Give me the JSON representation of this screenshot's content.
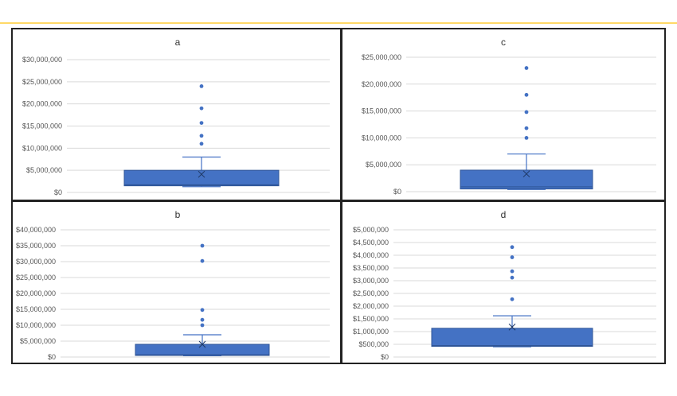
{
  "colors": {
    "box_fill": "#4472c4",
    "box_stroke": "#2f5597",
    "whisker": "#4472c4",
    "grid": "#d9d9d9",
    "border": "#222222",
    "top_line": "#ffd966"
  },
  "chart_data": [
    {
      "type": "box",
      "title": "a",
      "ylim": [
        0,
        30000000
      ],
      "yticks": [
        0,
        5000000,
        10000000,
        15000000,
        20000000,
        25000000,
        30000000
      ],
      "ytick_labels": [
        "$0",
        "$5,000,000",
        "$10,000,000",
        "$15,000,000",
        "$20,000,000",
        "$25,000,000",
        "$30,000,000"
      ],
      "box": {
        "min": 1300000,
        "q1": 1500000,
        "median": 1700000,
        "q3": 5000000,
        "whisker_high": 8000000,
        "mean": 4100000
      },
      "outliers": [
        11000000,
        12800000,
        15700000,
        19000000,
        24000000
      ]
    },
    {
      "type": "box",
      "title": "c",
      "ylim": [
        0,
        25000000
      ],
      "yticks": [
        0,
        5000000,
        10000000,
        15000000,
        20000000,
        25000000
      ],
      "ytick_labels": [
        "$0",
        "$5,000,000",
        "$10,000,000",
        "$15,000,000",
        "$20,000,000",
        "$25,000,000"
      ],
      "box": {
        "min": 400000,
        "q1": 500000,
        "median": 900000,
        "q3": 4000000,
        "whisker_high": 7000000,
        "mean": 3300000
      },
      "outliers": [
        10000000,
        11800000,
        14800000,
        18000000,
        23000000
      ]
    },
    {
      "type": "box",
      "title": "b",
      "ylim": [
        0,
        40000000
      ],
      "yticks": [
        0,
        5000000,
        10000000,
        15000000,
        20000000,
        25000000,
        30000000,
        35000000,
        40000000
      ],
      "ytick_labels": [
        "$0",
        "$5,000,000",
        "$10,000,000",
        "$15,000,000",
        "$20,000,000",
        "$25,000,000",
        "$30,000,000",
        "$35,000,000",
        "$40,000,000"
      ],
      "box": {
        "min": 400000,
        "q1": 500000,
        "median": 700000,
        "q3": 4000000,
        "whisker_high": 7000000,
        "mean": 4000000
      },
      "outliers": [
        10000000,
        11700000,
        14800000,
        30200000,
        35000000
      ]
    },
    {
      "type": "box",
      "title": "d",
      "ylim": [
        0,
        5000000
      ],
      "yticks": [
        0,
        500000,
        1000000,
        1500000,
        2000000,
        2500000,
        3000000,
        3500000,
        4000000,
        4500000,
        5000000
      ],
      "ytick_labels": [
        "$0",
        "$500,000",
        "$1,000,000",
        "$1,500,000",
        "$2,000,000",
        "$2,500,000",
        "$3,000,000",
        "$3,500,000",
        "$4,000,000",
        "$4,500,000",
        "$5,000,000"
      ],
      "box": {
        "min": 400000,
        "q1": 420000,
        "median": 450000,
        "q3": 1130000,
        "whisker_high": 1620000,
        "mean": 1180000
      },
      "outliers": [
        2270000,
        3120000,
        3370000,
        3920000,
        4320000
      ]
    }
  ]
}
